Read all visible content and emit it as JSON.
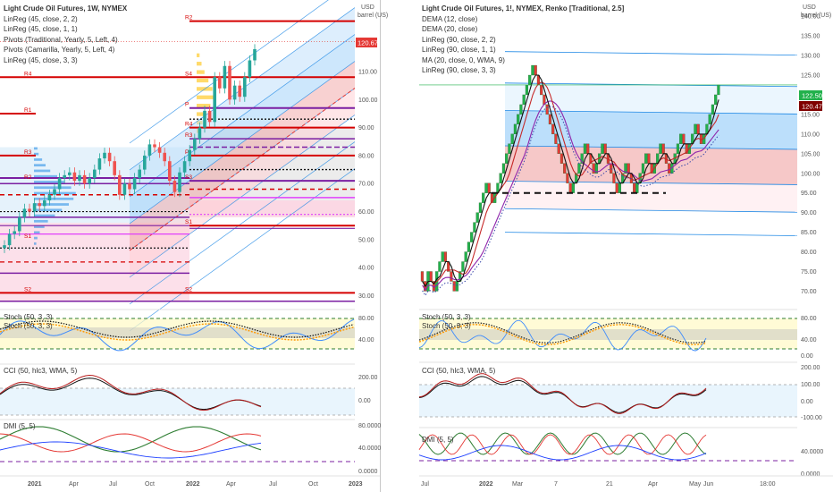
{
  "colors": {
    "up": "#26a69a",
    "down": "#ef5350",
    "brick_up": "#22b14c",
    "brick_down": "#e53935",
    "pivot_red": "#d50000",
    "pivot_purple": "#7b1fa2",
    "magenta": "#e040fb",
    "stoch_k": "#3d8bfd",
    "stoch_d": "#ff9800",
    "cci": "#b71c1c",
    "dmi_plus": "#2e7d32",
    "dmi_minus": "#e53935",
    "adx": "#1e40ff",
    "channel": "#1e88e5"
  },
  "left": {
    "legend": [
      "Light Crude Oil Futures, 1W, NYMEX",
      "LinReg (45, close, 2, 2)",
      "LinReg (45, close, 1, 1)",
      "Pivots (Traditional, Yearly, 5, Left, 4)",
      "Pivots (Camarilla, Yearly, 5, Left, 4)",
      "LinReg (45, close, 3, 3)"
    ],
    "unit": [
      "USD",
      "barrel (US)"
    ],
    "price_badge": "120.67",
    "pivot_labels": [
      "R2",
      "R4",
      "R1",
      "R3",
      "R2",
      "P",
      "S1",
      "S2",
      "S4",
      "R4",
      "R3",
      "P",
      "S3",
      "S1",
      "S2"
    ],
    "stoch_legend": [
      "Stoch (50, 3, 3)",
      "Stoch (50, 3, 3)"
    ],
    "cci_legend": "CCI (50, hlc3, WMA, 5)",
    "dmi_legend": "DMI (5, 5)",
    "chart_data": {
      "type": "candlestick",
      "y_ticks": [
        "110.00",
        "100.00",
        "90.00",
        "80.00",
        "70.00",
        "60.00",
        "50.00",
        "40.00",
        "30.00"
      ],
      "x_ticks": [
        "2021",
        "Apr",
        "Jul",
        "Oct",
        "2022",
        "Apr",
        "Jul",
        "Oct",
        "2023"
      ],
      "ylim": [
        26,
        133
      ],
      "close": [
        48,
        52,
        53,
        58,
        61,
        60,
        63,
        62,
        64,
        66,
        68,
        72,
        73,
        74,
        71,
        73,
        70,
        72,
        75,
        79,
        81,
        78,
        73,
        66,
        70,
        68,
        72,
        75,
        80,
        84,
        83,
        81,
        78,
        71,
        67,
        74,
        78,
        82,
        86,
        90,
        96,
        92,
        108,
        104,
        112,
        100,
        105,
        101,
        108,
        114,
        118
      ],
      "pivots": [
        {
          "label": "R2",
          "value": 128,
          "style": "red"
        },
        {
          "label": "R4",
          "value": 108,
          "style": "red"
        },
        {
          "label": "R1",
          "value": 95,
          "style": "red"
        },
        {
          "label": "R3",
          "value": 80,
          "style": "red"
        },
        {
          "label": "R2",
          "value": 71,
          "style": "red"
        },
        {
          "label": "P",
          "value": 60,
          "style": "red"
        },
        {
          "label": "S1",
          "value": 50,
          "style": "red"
        },
        {
          "label": "S2",
          "value": 31,
          "style": "red"
        }
      ],
      "stoch_ticks": [
        "80.00",
        "40.00"
      ],
      "cci_ticks": [
        "200.00",
        "0.00"
      ],
      "dmi_ticks": [
        "80.0000",
        "40.0000",
        "0.0000"
      ]
    }
  },
  "right": {
    "legend": [
      "Light Crude Oil Futures, 1!, NYMEX, Renko [Traditional, 2.5]",
      "DEMA (12, close)",
      "DEMA (20, close)",
      "LinReg (90, close, 2, 2)",
      "LinReg (90, close, 1, 1)",
      "MA (20, close, 0, WMA, 9)",
      "LinReg (90, close, 3, 3)"
    ],
    "unit": [
      "USD",
      "barrel (US)"
    ],
    "badge_green": "122.50",
    "badge_dark": "120.47",
    "stoch_legend": [
      "Stoch (50, 3, 3)",
      "Stoch (50, 3, 3)"
    ],
    "cci_legend": "CCI (50, hlc3, WMA, 5)",
    "dmi_legend": "DMI (5, 5)",
    "chart_data": {
      "type": "renko",
      "y_ticks": [
        "140.00",
        "135.00",
        "130.00",
        "125.00",
        "115.00",
        "110.00",
        "105.00",
        "100.00",
        "95.00",
        "90.00",
        "85.00",
        "80.00",
        "75.00",
        "70.00"
      ],
      "x_ticks": [
        "Jul",
        "2022",
        "Mar",
        "7",
        "21",
        "Apr",
        "May",
        "Jun",
        "18:00"
      ],
      "ylim": [
        66,
        143
      ],
      "closes": [
        72.5,
        70,
        75,
        72.5,
        70,
        75,
        77.5,
        80,
        77.5,
        75,
        72.5,
        70,
        72.5,
        75,
        77.5,
        80,
        82.5,
        85,
        87.5,
        90,
        92.5,
        95,
        97.5,
        95,
        92.5,
        95,
        97.5,
        100,
        102.5,
        105,
        107.5,
        110,
        112.5,
        115,
        117.5,
        120,
        122.5,
        125,
        127.5,
        125,
        122.5,
        120,
        117.5,
        115,
        112.5,
        110,
        107.5,
        105,
        102.5,
        100,
        97.5,
        95,
        97.5,
        100,
        102.5,
        105,
        107.5,
        105,
        102.5,
        100,
        102.5,
        105,
        107.5,
        105,
        102.5,
        100,
        97.5,
        95,
        97.5,
        100,
        102.5,
        100,
        97.5,
        95,
        97.5,
        100,
        102.5,
        105,
        102.5,
        100,
        102.5,
        105,
        107.5,
        105,
        102.5,
        100,
        102.5,
        105,
        107.5,
        110,
        107.5,
        105,
        107.5,
        110,
        112.5,
        110,
        107.5,
        110,
        112.5,
        115,
        117.5,
        120,
        122.5
      ],
      "support_level": 95,
      "stoch_ticks": [
        "80.00",
        "40.00",
        "0.00"
      ],
      "cci_ticks": [
        "200.00",
        "100.00",
        "0.00",
        "-100.00"
      ],
      "dmi_ticks": [
        "40.0000",
        "0.0000"
      ]
    }
  }
}
